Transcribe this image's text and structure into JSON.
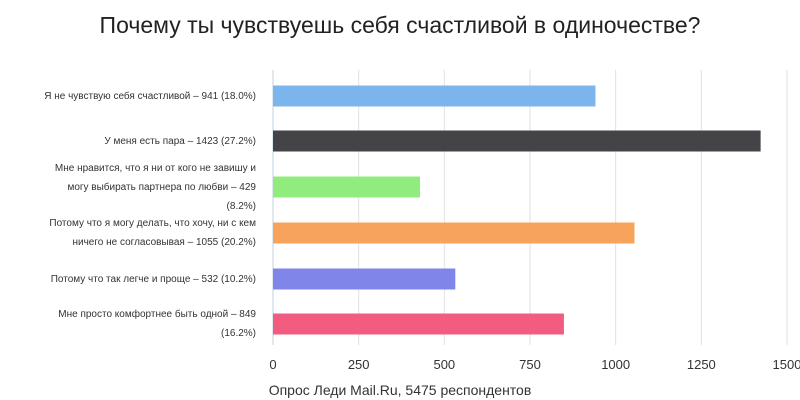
{
  "chart_data": {
    "type": "bar",
    "orientation": "horizontal",
    "title": "Почему ты чувствуешь себя счастливой в одиночестве?",
    "xlabel": "Опрос Леди Mail.Ru, 5475 респондентов",
    "ylabel": "",
    "xlim": [
      0,
      1500
    ],
    "xticks": [
      0,
      250,
      500,
      750,
      1000,
      1250,
      1500
    ],
    "grid": true,
    "categories": [
      {
        "lines": [
          "Я не чувствую себя счастливой – 941 (18.0%)"
        ],
        "value": 941,
        "color": "#7cb5ec"
      },
      {
        "lines": [
          "У меня есть пара – 1423 (27.2%)"
        ],
        "value": 1423,
        "color": "#434348"
      },
      {
        "lines": [
          "Мне нравится, что я ни от кого не завишу и",
          "могу выбирать партнера по любви – 429",
          "(8.2%)"
        ],
        "value": 429,
        "color": "#90ed7d"
      },
      {
        "lines": [
          "Потому что я могу делать, что хочу, ни с кем",
          "ничего не согласовывая – 1055 (20.2%)"
        ],
        "value": 1055,
        "color": "#f7a35c"
      },
      {
        "lines": [
          "Потому что так легче и проще – 532 (10.2%)"
        ],
        "value": 532,
        "color": "#8085e9"
      },
      {
        "lines": [
          "Мне просто комфортнее быть одной – 849",
          "(16.2%)"
        ],
        "value": 849,
        "color": "#f15c80"
      }
    ]
  }
}
